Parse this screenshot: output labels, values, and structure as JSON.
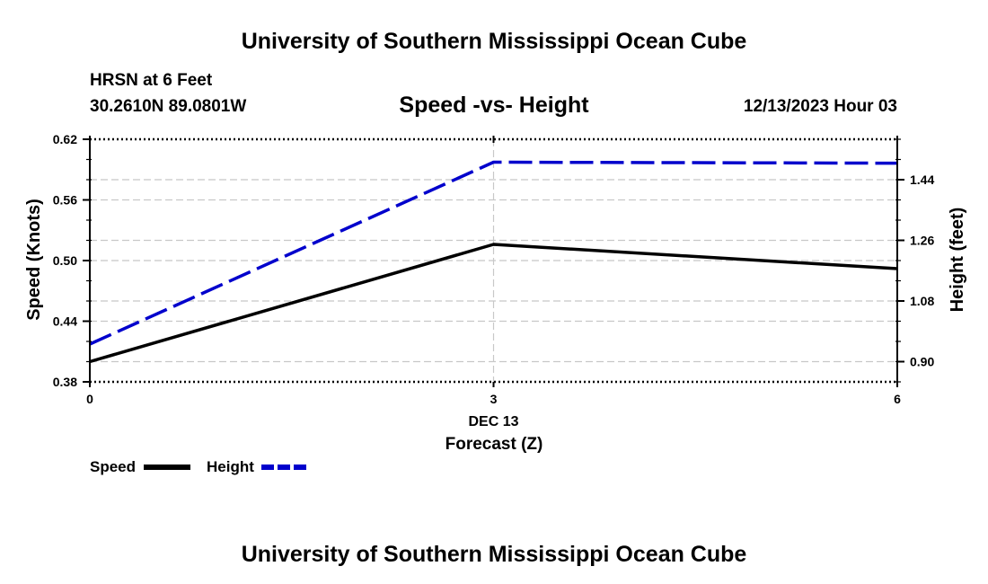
{
  "header": {
    "title_top": "University of Southern Mississippi Ocean Cube",
    "station": "HRSN at 6 Feet",
    "coords": "30.2610N  89.0801W",
    "plot_title": "Speed -vs- Height",
    "datetime": "12/13/2023 Hour 03",
    "title_bottom": "University of Southern Mississippi Ocean Cube"
  },
  "colors": {
    "speed": "#000000",
    "height": "#0000cc",
    "grid": "#c8c8c8"
  },
  "chart_data": {
    "type": "line",
    "title": "Speed -vs- Height",
    "xlabel": "Forecast (Z)",
    "x": [
      0,
      3,
      6
    ],
    "x_ticks": [
      {
        "value": 0,
        "label": "0",
        "sublabel": ""
      },
      {
        "value": 3,
        "label": "3",
        "sublabel": "DEC 13"
      },
      {
        "value": 6,
        "label": "6",
        "sublabel": ""
      }
    ],
    "xlim": [
      0,
      6
    ],
    "y_left": {
      "label": "Speed (Knots)",
      "lim": [
        0.38,
        0.62
      ],
      "ticks": [
        "0.38",
        "0.44",
        "0.50",
        "0.56",
        "0.62"
      ]
    },
    "y_right": {
      "label": "Height (feet)",
      "lim": [
        0.84,
        1.56
      ],
      "ticks": [
        "0.90",
        "1.08",
        "1.26",
        "1.44"
      ]
    },
    "series": [
      {
        "name": "Speed",
        "axis": "left",
        "style": "solid",
        "color": "#000000",
        "values": [
          0.4,
          0.516,
          0.492
        ]
      },
      {
        "name": "Height",
        "axis": "right",
        "style": "dashed",
        "color": "#0000cc",
        "values": [
          0.952,
          1.492,
          1.489
        ]
      }
    ],
    "legend": [
      {
        "label": "Speed",
        "style": "solid",
        "color": "#000000"
      },
      {
        "label": "Height",
        "style": "dashed",
        "color": "#0000cc"
      }
    ],
    "grid": true
  }
}
